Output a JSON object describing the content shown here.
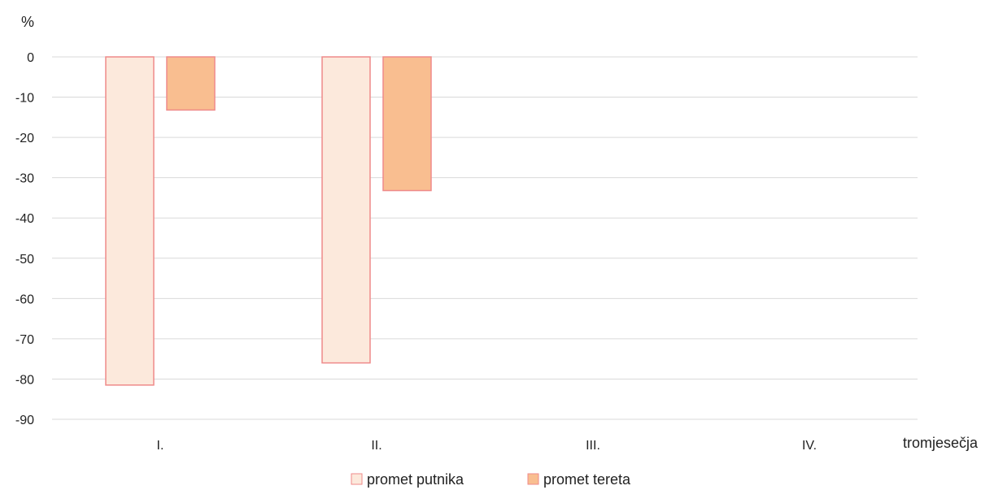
{
  "chart_data": {
    "type": "bar",
    "categories": [
      "I.",
      "II.",
      "III.",
      "IV."
    ],
    "series": [
      {
        "name": "promet putnika",
        "values": [
          -81.5,
          -76,
          null,
          null
        ],
        "color": "#fce9dc",
        "stroke": "#ef8a8a"
      },
      {
        "name": "promet tereta",
        "values": [
          -13.2,
          -33.2,
          null,
          null
        ],
        "color": "#f9be90",
        "stroke": "#ef8a8a"
      }
    ],
    "xlabel": "tromjesečja",
    "ylabel": "%",
    "ylim": [
      -90,
      0
    ],
    "yticks": [
      0,
      -10,
      -20,
      -30,
      -40,
      -50,
      -60,
      -70,
      -80,
      -90
    ],
    "grid": true,
    "legend_position": "bottom-center"
  }
}
